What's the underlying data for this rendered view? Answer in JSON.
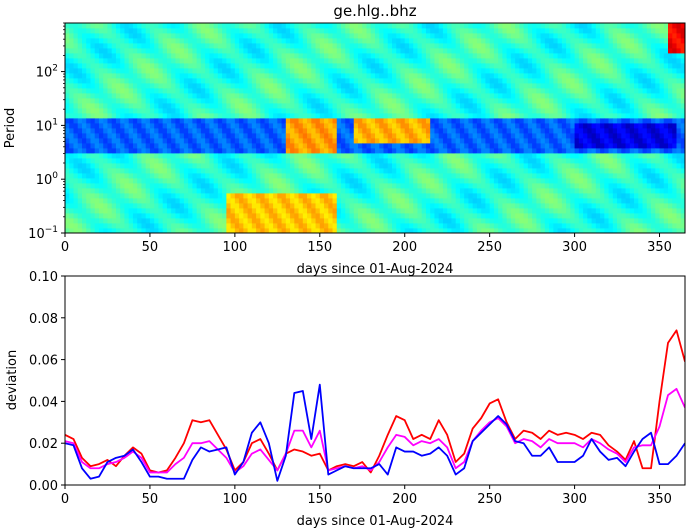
{
  "chart_data": [
    {
      "type": "heatmap",
      "title": "ge.hlg..bhz",
      "xlabel": "days since 01-Aug-2024",
      "ylabel": "Period",
      "xlim": [
        0,
        365
      ],
      "ylim": [
        0.1,
        800
      ],
      "yscale": "log",
      "xticks": [
        0,
        50,
        100,
        150,
        200,
        250,
        300,
        350
      ],
      "yticks": [
        {
          "value": 0.1,
          "base": "10",
          "exp": "−1"
        },
        {
          "value": 1,
          "base": "10",
          "exp": "0"
        },
        {
          "value": 10,
          "base": "10",
          "exp": "1"
        },
        {
          "value": 100,
          "base": "10",
          "exp": "2"
        }
      ],
      "colormap": "jet",
      "grid": false,
      "features": [
        {
          "x": [
            0,
            365
          ],
          "period": [
            3,
            15
          ],
          "level": 0.22
        },
        {
          "x": [
            95,
            160
          ],
          "period": [
            0.1,
            0.5
          ],
          "level": 0.68
        },
        {
          "x": [
            130,
            160
          ],
          "period": [
            3,
            15
          ],
          "level": 0.72
        },
        {
          "x": [
            170,
            215
          ],
          "period": [
            5,
            15
          ],
          "level": 0.7
        },
        {
          "x": [
            300,
            360
          ],
          "period": [
            4,
            12
          ],
          "level": 0.1
        },
        {
          "x": [
            355,
            365
          ],
          "period": [
            200,
            800
          ],
          "level": 0.88
        }
      ]
    },
    {
      "type": "line",
      "title": "",
      "xlabel": "days since 01-Aug-2024",
      "ylabel": "deviation",
      "xlim": [
        0,
        365
      ],
      "ylim": [
        0,
        0.1
      ],
      "xticks": [
        0,
        50,
        100,
        150,
        200,
        250,
        300,
        350
      ],
      "yticks": [
        "0.00",
        "0.02",
        "0.04",
        "0.06",
        "0.08",
        "0.10"
      ],
      "grid": false,
      "legend": "none",
      "series": [
        {
          "color": "#ff0000",
          "x": [
            0,
            5,
            10,
            15,
            20,
            25,
            30,
            35,
            40,
            45,
            50,
            55,
            60,
            65,
            70,
            75,
            80,
            85,
            90,
            95,
            100,
            105,
            110,
            115,
            120,
            125,
            130,
            135,
            140,
            145,
            150,
            155,
            160,
            165,
            170,
            175,
            180,
            185,
            190,
            195,
            200,
            205,
            210,
            215,
            220,
            225,
            230,
            235,
            240,
            245,
            250,
            255,
            260,
            265,
            270,
            275,
            280,
            285,
            290,
            295,
            300,
            305,
            310,
            315,
            320,
            325,
            330,
            335,
            340,
            345,
            350,
            355,
            360,
            365
          ],
          "values": [
            0.024,
            0.022,
            0.013,
            0.009,
            0.01,
            0.012,
            0.009,
            0.014,
            0.018,
            0.015,
            0.007,
            0.006,
            0.007,
            0.013,
            0.02,
            0.031,
            0.03,
            0.031,
            0.024,
            0.017,
            0.007,
            0.011,
            0.02,
            0.022,
            0.015,
            0.007,
            0.015,
            0.017,
            0.016,
            0.014,
            0.015,
            0.007,
            0.009,
            0.01,
            0.009,
            0.011,
            0.006,
            0.014,
            0.024,
            0.033,
            0.031,
            0.022,
            0.024,
            0.022,
            0.031,
            0.024,
            0.011,
            0.015,
            0.027,
            0.032,
            0.039,
            0.041,
            0.03,
            0.022,
            0.026,
            0.025,
            0.022,
            0.026,
            0.024,
            0.025,
            0.024,
            0.022,
            0.025,
            0.024,
            0.019,
            0.016,
            0.012,
            0.021,
            0.008,
            0.008,
            0.04,
            0.068,
            0.074,
            0.059
          ]
        },
        {
          "color": "#ff00ff",
          "x": [
            0,
            5,
            10,
            15,
            20,
            25,
            30,
            35,
            40,
            45,
            50,
            55,
            60,
            65,
            70,
            75,
            80,
            85,
            90,
            95,
            100,
            105,
            110,
            115,
            120,
            125,
            130,
            135,
            140,
            145,
            150,
            155,
            160,
            165,
            170,
            175,
            180,
            185,
            190,
            195,
            200,
            205,
            210,
            215,
            220,
            225,
            230,
            235,
            240,
            245,
            250,
            255,
            260,
            265,
            270,
            275,
            280,
            285,
            290,
            295,
            300,
            305,
            310,
            315,
            320,
            325,
            330,
            335,
            340,
            345,
            350,
            355,
            360,
            365
          ],
          "values": [
            0.021,
            0.02,
            0.011,
            0.008,
            0.008,
            0.01,
            0.011,
            0.013,
            0.016,
            0.013,
            0.006,
            0.006,
            0.006,
            0.01,
            0.013,
            0.02,
            0.02,
            0.021,
            0.017,
            0.013,
            0.006,
            0.009,
            0.015,
            0.017,
            0.012,
            0.007,
            0.015,
            0.026,
            0.026,
            0.018,
            0.026,
            0.007,
            0.008,
            0.009,
            0.008,
            0.009,
            0.007,
            0.011,
            0.018,
            0.024,
            0.023,
            0.019,
            0.021,
            0.02,
            0.022,
            0.018,
            0.008,
            0.011,
            0.021,
            0.026,
            0.03,
            0.032,
            0.028,
            0.02,
            0.022,
            0.021,
            0.018,
            0.022,
            0.02,
            0.02,
            0.02,
            0.018,
            0.022,
            0.02,
            0.017,
            0.015,
            0.011,
            0.018,
            0.019,
            0.019,
            0.028,
            0.043,
            0.046,
            0.037
          ]
        },
        {
          "color": "#0000ff",
          "x": [
            0,
            5,
            10,
            15,
            20,
            25,
            30,
            35,
            40,
            45,
            50,
            55,
            60,
            65,
            70,
            75,
            80,
            85,
            90,
            95,
            100,
            105,
            110,
            115,
            120,
            125,
            130,
            135,
            140,
            145,
            150,
            155,
            160,
            165,
            170,
            175,
            180,
            185,
            190,
            195,
            200,
            205,
            210,
            215,
            220,
            225,
            230,
            235,
            240,
            245,
            250,
            255,
            260,
            265,
            270,
            275,
            280,
            285,
            290,
            295,
            300,
            305,
            310,
            315,
            320,
            325,
            330,
            335,
            340,
            345,
            350,
            355,
            360,
            365
          ],
          "values": [
            0.02,
            0.019,
            0.008,
            0.003,
            0.004,
            0.011,
            0.013,
            0.014,
            0.017,
            0.011,
            0.004,
            0.004,
            0.003,
            0.003,
            0.003,
            0.012,
            0.018,
            0.016,
            0.017,
            0.018,
            0.005,
            0.011,
            0.025,
            0.03,
            0.02,
            0.002,
            0.014,
            0.044,
            0.045,
            0.022,
            0.048,
            0.005,
            0.007,
            0.009,
            0.008,
            0.008,
            0.008,
            0.01,
            0.005,
            0.018,
            0.016,
            0.016,
            0.014,
            0.015,
            0.018,
            0.014,
            0.005,
            0.008,
            0.021,
            0.025,
            0.029,
            0.033,
            0.029,
            0.021,
            0.02,
            0.014,
            0.014,
            0.018,
            0.011,
            0.011,
            0.011,
            0.014,
            0.022,
            0.016,
            0.012,
            0.013,
            0.009,
            0.016,
            0.022,
            0.025,
            0.01,
            0.01,
            0.014,
            0.02
          ]
        }
      ]
    }
  ]
}
